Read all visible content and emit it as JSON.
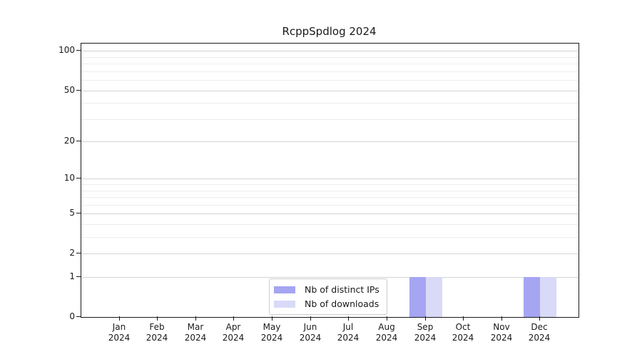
{
  "chart_data": {
    "type": "bar",
    "title": "RcppSpdlog 2024",
    "x_months": [
      "Jan",
      "Feb",
      "Mar",
      "Apr",
      "May",
      "Jun",
      "Jul",
      "Aug",
      "Sep",
      "Oct",
      "Nov",
      "Dec"
    ],
    "x_year": "2024",
    "series": [
      {
        "name": "Nb of distinct IPs",
        "color": "#a5a5f2",
        "values": [
          0,
          0,
          0,
          0,
          0,
          0,
          0,
          0,
          1,
          0,
          0,
          1
        ]
      },
      {
        "name": "Nb of downloads",
        "color": "#d9d9f8",
        "values": [
          0,
          0,
          0,
          0,
          0,
          0,
          0,
          0,
          1,
          0,
          0,
          1
        ]
      }
    ],
    "y_scale": "log1p",
    "ylim": [
      0,
      114
    ],
    "y_major_ticks": [
      100,
      50,
      20,
      10,
      5,
      2,
      1,
      0
    ],
    "y_minor_gridlines": [
      3,
      4,
      6,
      7,
      8,
      9,
      30,
      40,
      60,
      70,
      80,
      90
    ],
    "grid": "horizontal",
    "legend_position": "bottom-center-inside",
    "colors": {
      "major_grid": "#d4d4d4",
      "minor_grid": "#ededed",
      "axis": "#1a1a1a",
      "text": "#1a1a1a",
      "background": "#ffffff"
    }
  }
}
